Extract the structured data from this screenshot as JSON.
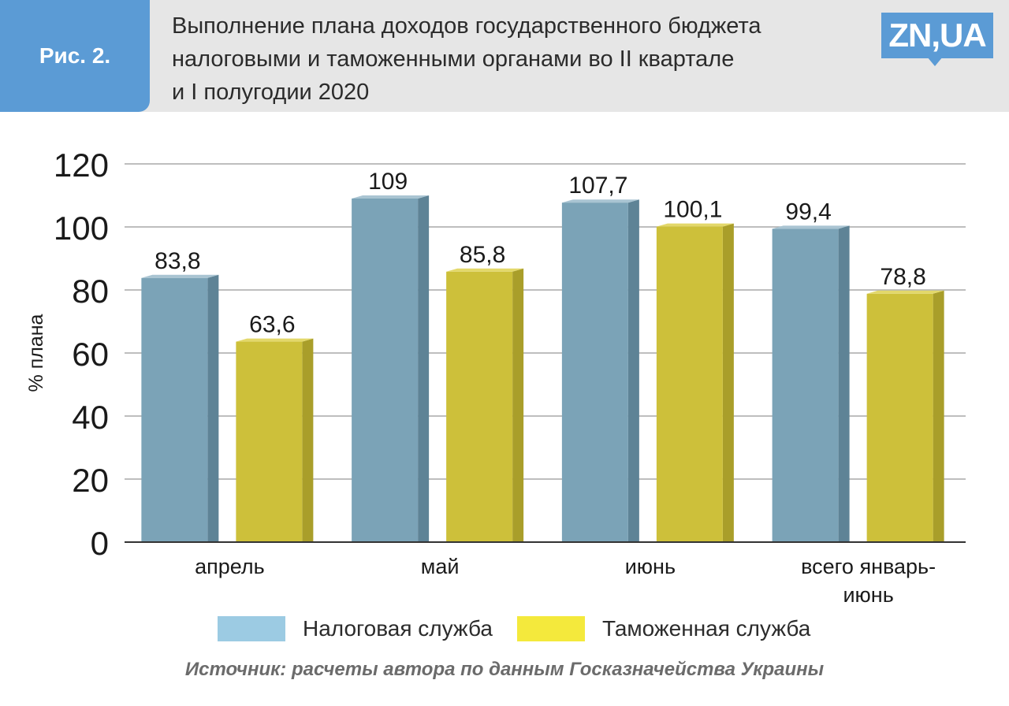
{
  "header": {
    "fig_label": "Рис. 2.",
    "title_lines": [
      "Выполнение плана доходов государственного бюджета",
      "налоговыми и таможенными органами во II квартале",
      "и I полугодии 2020"
    ],
    "logo": "ZN,UA"
  },
  "colors": {
    "tax": "#7ba3b7",
    "tax_side": "#5e8396",
    "tax_top": "#a9c4d2",
    "customs": "#cdc03a",
    "customs_side": "#a99e2a",
    "customs_top": "#e3d86a",
    "legend_tax": "#9ccbe3",
    "legend_customs": "#f4e93c",
    "grid": "#a9a9a9",
    "axis": "#333333"
  },
  "chart_data": {
    "type": "bar",
    "ylabel": "% плана",
    "ylim": [
      0,
      120
    ],
    "yticks": [
      0,
      20,
      40,
      60,
      80,
      100,
      120
    ],
    "ytick_labels": [
      "0",
      "20",
      "40",
      "60",
      "80",
      "100",
      "120"
    ],
    "grid": true,
    "categories": [
      "апрель",
      "май",
      "июнь",
      "всего январь-июнь"
    ],
    "category_label_lines": [
      [
        "апрель"
      ],
      [
        "май"
      ],
      [
        "июнь"
      ],
      [
        "всего январь-",
        "июнь"
      ]
    ],
    "series": [
      {
        "name": "Налоговая служба",
        "values": [
          83.8,
          109,
          107.7,
          99.4
        ],
        "labels": [
          "83,8",
          "109",
          "107,7",
          "99,4"
        ]
      },
      {
        "name": "Таможенная служба",
        "values": [
          63.6,
          85.8,
          100.1,
          78.8
        ],
        "labels": [
          "63,6",
          "85,8",
          "100,1",
          "78,8"
        ]
      }
    ],
    "legend_position": "bottom"
  },
  "legend": {
    "items": [
      "Налоговая служба",
      "Таможенная служба"
    ]
  },
  "source": "Источник: расчеты автора по данным Госказначейства Украины"
}
